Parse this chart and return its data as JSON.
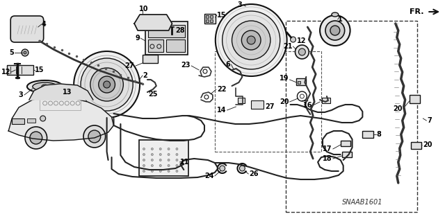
{
  "bg_color": "#ffffff",
  "diagram_code": "SNAAB1601",
  "text_color": "#000000",
  "line_color": "#111111",
  "fig_w": 6.4,
  "fig_h": 3.19,
  "dpi": 100
}
